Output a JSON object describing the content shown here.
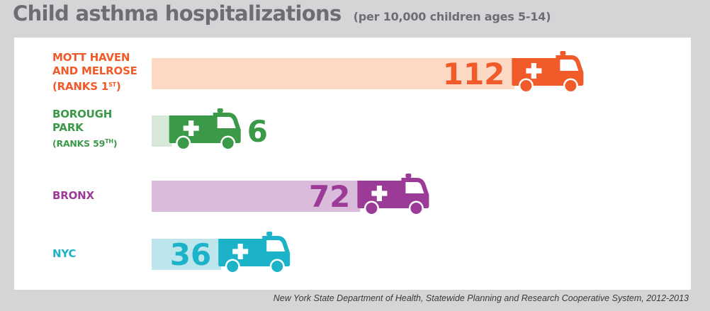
{
  "header": {
    "title": "Child asthma hospitalizations",
    "subtitle": "(per 10,000 children ages 5-14)"
  },
  "source": "New York State Department of Health, Statewide Planning and Research Cooperative System, 2012-2013",
  "chart_data": {
    "type": "bar",
    "orientation": "horizontal",
    "title": "Child asthma hospitalizations",
    "subtitle": "(per 10,000 children ages 5-14)",
    "xlabel": "",
    "ylabel": "",
    "grid": false,
    "legend": "none",
    "marker": "ambulance-icon",
    "categories": [
      {
        "id": "mott",
        "lines": [
          {
            "text": "MOTT HAVEN"
          },
          {
            "text": "AND MELROSE"
          },
          {
            "text": "(RANKS 1",
            "sup": "ST",
            "tail": ")"
          }
        ],
        "value": 112,
        "value_label": "112",
        "color": "#f15a29",
        "track": "#fbd9c4"
      },
      {
        "id": "borough",
        "lines": [
          {
            "text": "BOROUGH"
          },
          {
            "text": "PARK"
          },
          {
            "text": "(RANKS 59",
            "sup": "TH",
            "tail": ")",
            "small": true
          }
        ],
        "value": 6,
        "value_label": "6",
        "color": "#3a9a48",
        "track": "#d6e8d7"
      },
      {
        "id": "bronx",
        "lines": [
          {
            "text": "BRONX"
          }
        ],
        "value": 72,
        "value_label": "72",
        "color": "#9b3b97",
        "track": "#dbbbdb"
      },
      {
        "id": "nyc",
        "lines": [
          {
            "text": "NYC"
          }
        ],
        "value": 36,
        "value_label": "36",
        "color": "#1cb3c8",
        "track": "#bde5ec"
      }
    ]
  }
}
